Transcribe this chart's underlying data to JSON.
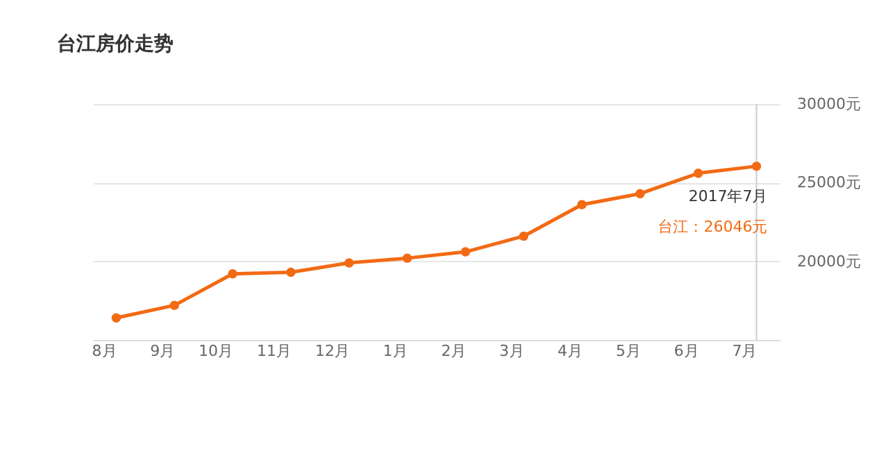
{
  "chart_data": {
    "type": "line",
    "title": "台江房价走势",
    "categories": [
      "8月",
      "9月",
      "10月",
      "11月",
      "12月",
      "1月",
      "2月",
      "3月",
      "4月",
      "5月",
      "6月",
      "7月"
    ],
    "series": [
      {
        "color": "#f26a14",
        "values": [
          16400,
          17200,
          19200,
          19300,
          19900,
          20200,
          20600,
          21600,
          23600,
          24300,
          25600,
          26046
        ]
      }
    ],
    "ylim": [
      15000,
      30000
    ],
    "yticks": [
      {
        "value": 15000,
        "label": null
      },
      {
        "value": 20000,
        "label": "20000元"
      },
      {
        "value": 25000,
        "label": "25000元"
      },
      {
        "value": 30000,
        "label": "30000元"
      }
    ],
    "grid": "y",
    "marker": "circle",
    "line_style": "solid",
    "ref_lines": [
      {
        "axis": "x",
        "value": "7月",
        "color": "#cccccc"
      }
    ],
    "annotations": [
      "2017年7月",
      "台江：26046元"
    ]
  }
}
